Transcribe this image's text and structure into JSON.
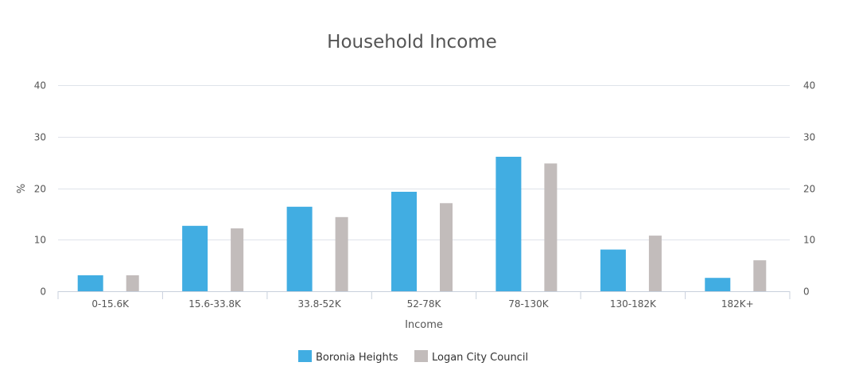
{
  "chart_data": {
    "type": "bar",
    "title": "Household Income",
    "xlabel": "Income",
    "ylabel": "%",
    "ylim": [
      0,
      40
    ],
    "yticks": [
      0,
      10,
      20,
      30,
      40
    ],
    "grid": true,
    "legend_position": "bottom",
    "categories": [
      "0-15.6K",
      "15.6-33.8K",
      "33.8-52K",
      "52-78K",
      "78-130K",
      "130-182K",
      "182K+"
    ],
    "series": [
      {
        "name": "Boronia Heights",
        "color": "#41ade2",
        "values": [
          3.1,
          12.7,
          16.4,
          19.3,
          26.1,
          8.1,
          2.6
        ]
      },
      {
        "name": "Logan City Council",
        "color": "#c2bcbb",
        "values": [
          3.1,
          12.2,
          14.4,
          17.1,
          24.8,
          10.8,
          6.0
        ]
      }
    ]
  }
}
